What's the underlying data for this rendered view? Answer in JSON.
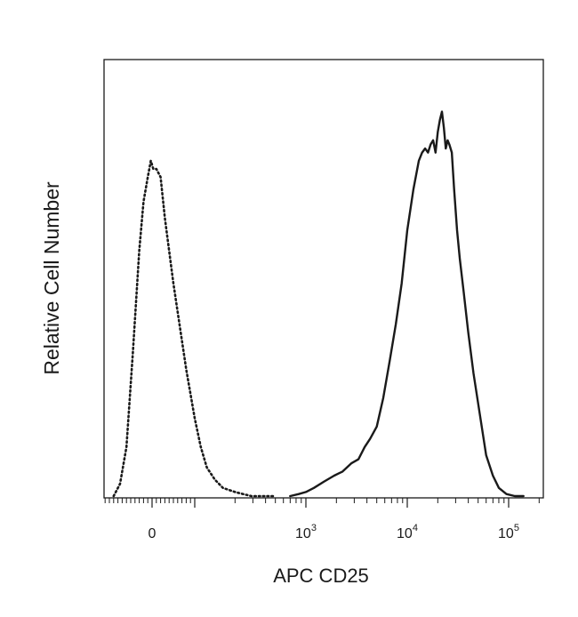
{
  "chart_data": {
    "type": "line",
    "title": "",
    "xlabel": "APC CD25",
    "ylabel": "Relative Cell Number",
    "x_scale": "biexponential",
    "xlim": [
      -120,
      160000
    ],
    "ylim": [
      0,
      1.0
    ],
    "grid": false,
    "x_ticks": [
      {
        "value": 0,
        "base": "0",
        "exp": ""
      },
      {
        "value": 1000,
        "base": "10",
        "exp": "3"
      },
      {
        "value": 10000,
        "base": "10",
        "exp": "4"
      },
      {
        "value": 100000,
        "base": "10",
        "exp": "5"
      }
    ],
    "series": [
      {
        "style": "dotted",
        "color": "#1a1a1a",
        "x": [
          -90,
          -75,
          -60,
          -45,
          -30,
          -20,
          -10,
          -3,
          3,
          10,
          20,
          30,
          40,
          50,
          60,
          70,
          80,
          90,
          100,
          115,
          130,
          150,
          170,
          200,
          240,
          290,
          350,
          420,
          500
        ],
        "y": [
          0.0,
          0.03,
          0.12,
          0.35,
          0.6,
          0.72,
          0.78,
          0.82,
          0.8,
          0.8,
          0.78,
          0.68,
          0.6,
          0.52,
          0.45,
          0.38,
          0.31,
          0.25,
          0.19,
          0.12,
          0.07,
          0.04,
          0.02,
          0.01,
          0.005,
          0.0,
          0.0,
          0.0,
          0.0
        ]
      },
      {
        "style": "solid",
        "color": "#1a1a1a",
        "x": [
          700,
          850,
          1000,
          1200,
          1500,
          1900,
          2300,
          2800,
          3300,
          3800,
          4300,
          5000,
          5800,
          6700,
          7700,
          8800,
          10000,
          11500,
          13000,
          14000,
          15000,
          16000,
          17000,
          18000,
          19000,
          20000,
          21000,
          22000,
          23000,
          24000,
          25000,
          26000,
          27500,
          29000,
          31000,
          33000,
          36000,
          40000,
          45000,
          52000,
          60000,
          70000,
          80000,
          95000,
          115000,
          140000
        ],
        "y": [
          0.0,
          0.005,
          0.01,
          0.02,
          0.035,
          0.05,
          0.06,
          0.08,
          0.09,
          0.12,
          0.14,
          0.17,
          0.24,
          0.33,
          0.42,
          0.52,
          0.65,
          0.75,
          0.82,
          0.84,
          0.85,
          0.84,
          0.86,
          0.87,
          0.84,
          0.89,
          0.92,
          0.94,
          0.9,
          0.85,
          0.87,
          0.86,
          0.84,
          0.75,
          0.65,
          0.58,
          0.5,
          0.4,
          0.3,
          0.2,
          0.1,
          0.05,
          0.02,
          0.005,
          0.0,
          0.0
        ]
      }
    ]
  }
}
